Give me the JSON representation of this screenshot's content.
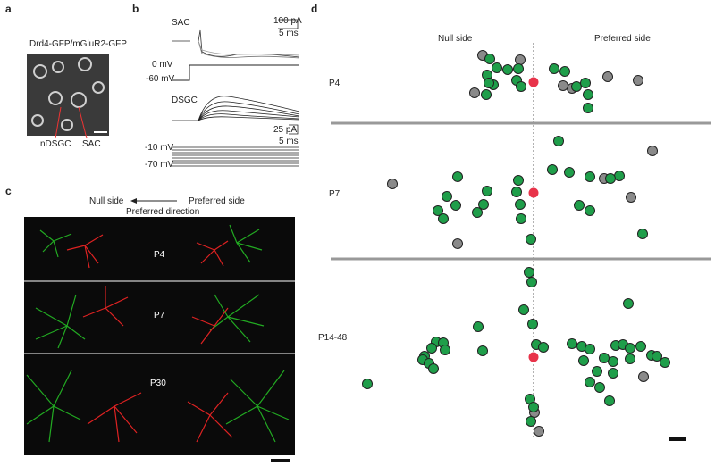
{
  "panel_a": {
    "letter": "a",
    "title": "Drd4-GFP/mGluR2-GFP",
    "label_ndsgc": "nDSGC",
    "label_sac": "SAC"
  },
  "panel_b": {
    "letter": "b",
    "sac": "SAC",
    "sac_scale_y": "100 pA",
    "sac_scale_x": "5 ms",
    "v_high": "0 mV",
    "v_low": "-60 mV",
    "dsgc": "DSGC",
    "dsgc_scale_y": "25 pA",
    "dsgc_scale_x": "5 ms",
    "step_high": "-10 mV",
    "step_low": "-70 mV"
  },
  "panel_c": {
    "letter": "c",
    "null_side": "Null side",
    "preferred_side": "Preferred side",
    "direction": "Preferred direction",
    "rows": [
      "P4",
      "P7",
      "P30"
    ]
  },
  "panel_d": {
    "letter": "d",
    "null_side": "Null side",
    "preferred_side": "Preferred side",
    "rows": [
      "P4",
      "P7",
      "P14-48"
    ]
  }
}
